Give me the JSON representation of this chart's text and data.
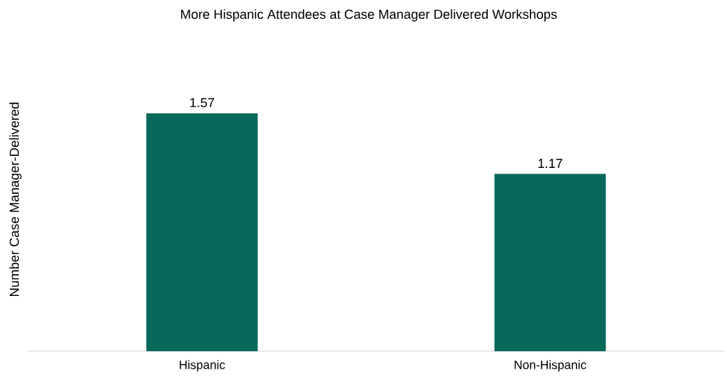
{
  "chart_data": {
    "type": "bar",
    "title": "More Hispanic Attendees at Case Manager Delivered Workshops",
    "ylabel": "Number  Case Manager-Delivered",
    "categories": [
      "Hispanic",
      "Non-Hispanic"
    ],
    "values": [
      1.57,
      1.17
    ],
    "color": "#06695a",
    "data_labels": true
  }
}
